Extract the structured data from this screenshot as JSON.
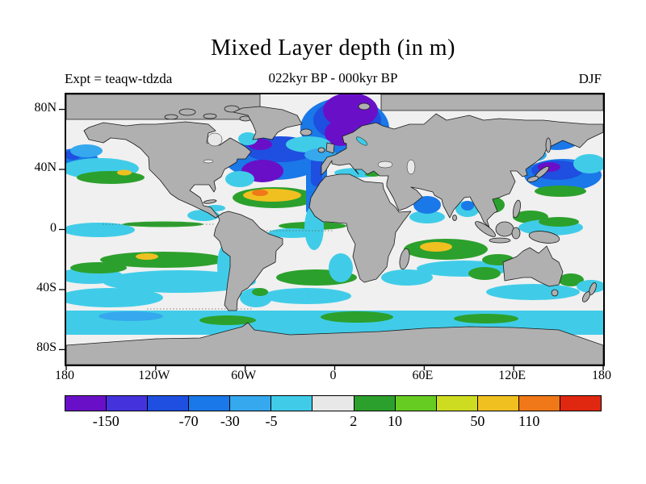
{
  "header": {
    "title": "Mixed Layer depth (in m)",
    "experiment_label": "Expt = teaqw-tdzda",
    "period_label": "022kyr BP - 000kyr BP",
    "season_label": "DJF"
  },
  "axes": {
    "x_ticks": [
      "180",
      "120W",
      "60W",
      "0",
      "60E",
      "120E",
      "180"
    ],
    "x_tick_pcts": [
      0,
      16.667,
      33.333,
      50,
      66.667,
      83.333,
      100
    ],
    "y_ticks": [
      "80N",
      "40N",
      "0",
      "40S",
      "80S"
    ],
    "y_tick_pcts": [
      5.56,
      27.78,
      50,
      72.22,
      94.44
    ]
  },
  "colorbar": {
    "segment_colors": [
      "#6a0fc8",
      "#4433dd",
      "#1e4fe0",
      "#1a78e8",
      "#35a8ee",
      "#40cce8",
      "#e8e8e8",
      "#2ca02c",
      "#66cc22",
      "#cddc20",
      "#f0c020",
      "#f07818",
      "#e02810"
    ],
    "tick_labels": [
      "-150",
      "-70",
      "-30",
      "-5",
      "2",
      "10",
      "50",
      "110"
    ],
    "tick_positions_pct": [
      7.7,
      23.1,
      30.8,
      38.5,
      53.8,
      61.5,
      76.9,
      86.5
    ]
  },
  "map": {
    "land_color": "#b0b0b0",
    "ocean_neutral_color": "#f0f0f0",
    "coastline_color": "#1a1a1a"
  },
  "chart_data": {
    "type": "heatmap",
    "title": "Mixed Layer depth (in m)",
    "subtitle": "022kyr BP - 000kyr BP",
    "experiment": "teaqw-tdzda",
    "season": "DJF",
    "units": "m",
    "projection": "equirectangular world map",
    "x_axis": {
      "tick_labels": [
        "180",
        "120W",
        "60W",
        "0",
        "60E",
        "120E",
        "180"
      ],
      "range_deg": [
        -180,
        180
      ]
    },
    "y_axis": {
      "tick_labels": [
        "80N",
        "40N",
        "0",
        "40S",
        "80S"
      ],
      "range_deg": [
        -90,
        90
      ]
    },
    "color_levels": [
      -150,
      -70,
      -30,
      -5,
      2,
      10,
      50,
      110
    ],
    "palette": [
      "#6a0fc8",
      "#4433dd",
      "#1e4fe0",
      "#1a78e8",
      "#35a8ee",
      "#40cce8",
      "#e8e8e8",
      "#2ca02c",
      "#66cc22",
      "#cddc20",
      "#f0c020",
      "#f07818",
      "#e02810"
    ],
    "land_mask_color": "#b0b0b0",
    "notable_features": [
      {
        "region": "Nordic Seas / Greenland Sea",
        "lon": 0,
        "lat": 72,
        "value_bin": "below -150 (strong negative anomaly, purple)"
      },
      {
        "region": "Northwest Atlantic off New England",
        "lon": -55,
        "lat": 42,
        "value_bin": "-150 to -70 (purple / dark blue)"
      },
      {
        "region": "Subtropical North Atlantic",
        "lon": -45,
        "lat": 25,
        "value_bin": "10 to 110 (green / yellow / orange positive anomaly)"
      },
      {
        "region": "Kuroshio region, Northwest Pacific",
        "lon": 150,
        "lat": 38,
        "value_bin": "-70 to -30 (dark blue, small purple core)"
      },
      {
        "region": "Eastern Atlantic along Iberia / NW Africa",
        "lon": -13,
        "lat": 40,
        "value_bin": "-70 to -30 (blue strip)"
      },
      {
        "region": "Southern Ocean near 55S",
        "lon": null,
        "lat": -55,
        "value_bin": "-30 to -5 (circumpolar cyan band)"
      },
      {
        "region": "Subtropical South Pacific, South Atlantic and Indian Ocean",
        "lon": null,
        "lat": -20,
        "value_bin": "2 to 50 (green, patches of yellow)"
      },
      {
        "region": "Continents, Arctic and Antarctic",
        "lon": null,
        "lat": null,
        "value_bin": "masked gray"
      }
    ]
  }
}
